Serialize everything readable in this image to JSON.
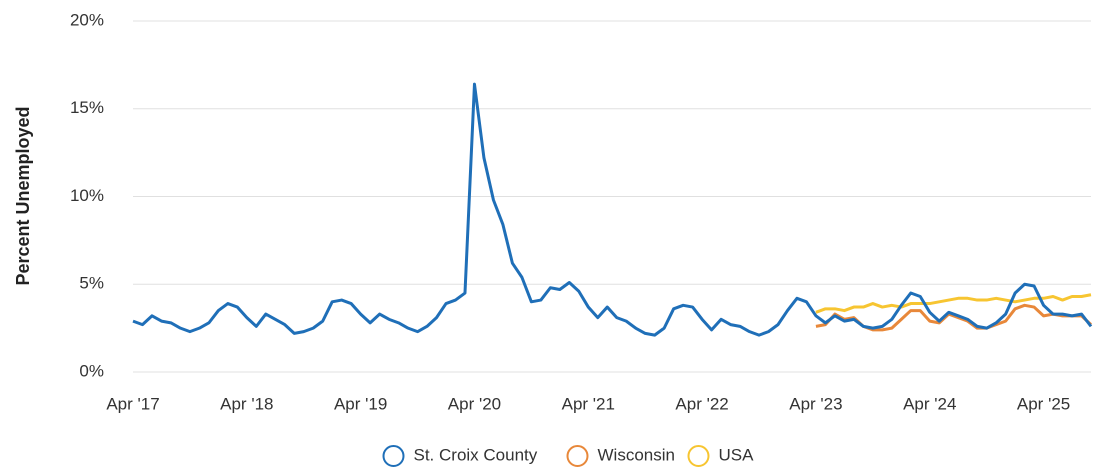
{
  "chart_data": {
    "type": "line",
    "y_label": "Percent Unemployed",
    "categories": [
      "Apr '17",
      null,
      null,
      null,
      null,
      null,
      null,
      null,
      null,
      null,
      null,
      null,
      "Apr '18",
      null,
      null,
      null,
      null,
      null,
      null,
      null,
      null,
      null,
      null,
      null,
      "Apr '19",
      null,
      null,
      null,
      null,
      null,
      null,
      null,
      null,
      null,
      null,
      null,
      "Apr '20",
      null,
      null,
      null,
      null,
      null,
      null,
      null,
      null,
      null,
      null,
      null,
      "Apr '21",
      null,
      null,
      null,
      null,
      null,
      null,
      null,
      null,
      null,
      null,
      null,
      "Apr '22",
      null,
      null,
      null,
      null,
      null,
      null,
      null,
      null,
      null,
      null,
      null,
      "Apr '23",
      null,
      null,
      null,
      null,
      null,
      null,
      null,
      null,
      null,
      null,
      null,
      "Apr '24",
      null,
      null,
      null,
      null,
      null,
      null,
      null,
      null,
      null,
      null,
      null,
      "Apr '25",
      null,
      null,
      null,
      null,
      null
    ],
    "series": [
      {
        "name": "St. Croix County",
        "color": "#1f6fb8",
        "values": [
          2.9,
          2.7,
          3.2,
          2.9,
          2.8,
          2.5,
          2.3,
          2.5,
          2.8,
          3.5,
          3.9,
          3.7,
          3.1,
          2.6,
          3.3,
          3.0,
          2.7,
          2.2,
          2.3,
          2.5,
          2.9,
          4.0,
          4.1,
          3.9,
          3.3,
          2.8,
          3.3,
          3.0,
          2.8,
          2.5,
          2.3,
          2.6,
          3.1,
          3.9,
          4.1,
          4.5,
          16.4,
          12.2,
          9.8,
          8.4,
          6.2,
          5.4,
          4.0,
          4.1,
          4.8,
          4.7,
          5.1,
          4.6,
          3.7,
          3.1,
          3.7,
          3.1,
          2.9,
          2.5,
          2.2,
          2.1,
          2.5,
          3.6,
          3.8,
          3.7,
          3.0,
          2.4,
          3.0,
          2.7,
          2.6,
          2.3,
          2.1,
          2.3,
          2.7,
          3.5,
          4.2,
          4.0,
          3.2,
          2.8,
          3.2,
          2.9,
          3.0,
          2.6,
          2.5,
          2.6,
          3.0,
          3.8,
          4.5,
          4.3,
          3.4,
          2.9,
          3.4,
          3.2,
          3.0,
          2.6,
          2.5,
          2.8,
          3.3,
          4.5,
          5.0,
          4.9,
          3.8,
          3.3,
          3.3,
          3.2,
          3.3,
          2.6
        ]
      },
      {
        "name": "Wisconsin",
        "color": "#e8883a",
        "values": [
          null,
          null,
          null,
          null,
          null,
          null,
          null,
          null,
          null,
          null,
          null,
          null,
          null,
          null,
          null,
          null,
          null,
          null,
          null,
          null,
          null,
          null,
          null,
          null,
          null,
          null,
          null,
          null,
          null,
          null,
          null,
          null,
          null,
          null,
          null,
          null,
          null,
          null,
          null,
          null,
          null,
          null,
          null,
          null,
          null,
          null,
          null,
          null,
          null,
          null,
          null,
          null,
          null,
          null,
          null,
          null,
          null,
          null,
          null,
          null,
          null,
          null,
          null,
          null,
          null,
          null,
          null,
          null,
          null,
          null,
          null,
          null,
          2.6,
          2.7,
          3.3,
          3.0,
          3.1,
          2.6,
          2.4,
          2.4,
          2.5,
          3.0,
          3.5,
          3.5,
          2.9,
          2.8,
          3.3,
          3.1,
          2.9,
          2.5,
          2.5,
          2.7,
          2.9,
          3.6,
          3.8,
          3.7,
          3.2,
          3.3,
          3.2,
          3.2,
          3.2,
          2.7
        ]
      },
      {
        "name": "USA",
        "color": "#f7c531",
        "values": [
          null,
          null,
          null,
          null,
          null,
          null,
          null,
          null,
          null,
          null,
          null,
          null,
          null,
          null,
          null,
          null,
          null,
          null,
          null,
          null,
          null,
          null,
          null,
          null,
          null,
          null,
          null,
          null,
          null,
          null,
          null,
          null,
          null,
          null,
          null,
          null,
          null,
          null,
          null,
          null,
          null,
          null,
          null,
          null,
          null,
          null,
          null,
          null,
          null,
          null,
          null,
          null,
          null,
          null,
          null,
          null,
          null,
          null,
          null,
          null,
          null,
          null,
          null,
          null,
          null,
          null,
          null,
          null,
          null,
          null,
          null,
          null,
          3.4,
          3.6,
          3.6,
          3.5,
          3.7,
          3.7,
          3.9,
          3.7,
          3.8,
          3.7,
          3.9,
          3.9,
          3.9,
          4.0,
          4.1,
          4.2,
          4.2,
          4.1,
          4.1,
          4.2,
          4.1,
          4.0,
          4.1,
          4.2,
          4.2,
          4.3,
          4.1,
          4.3,
          4.3,
          4.4
        ]
      }
    ],
    "ylim": [
      0,
      20
    ],
    "yticks": [
      {
        "value": 0,
        "label": "0%"
      },
      {
        "value": 5,
        "label": "5%"
      },
      {
        "value": 10,
        "label": "10%"
      },
      {
        "value": 15,
        "label": "15%"
      },
      {
        "value": 20,
        "label": "20%"
      }
    ],
    "grid": true,
    "legend": "bottom"
  }
}
